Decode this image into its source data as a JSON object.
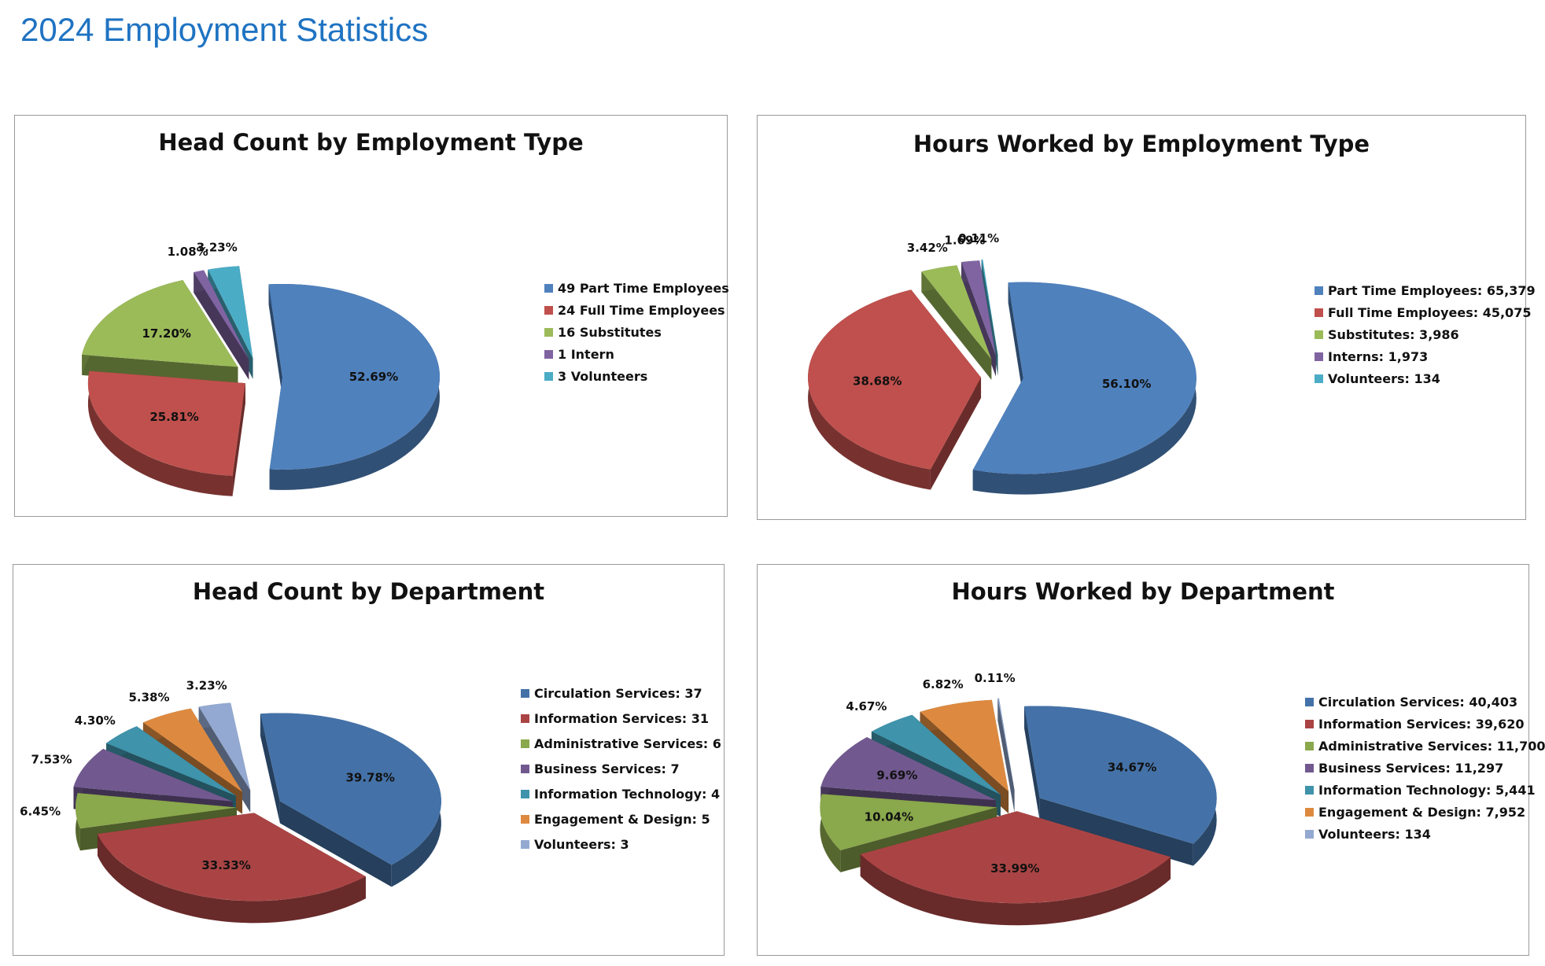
{
  "page": {
    "title": "2024 Employment Statistics"
  },
  "chart_data": [
    {
      "type": "pie",
      "title": "Head Count by Employment Type",
      "categories": [
        "49 Part Time Employees",
        "24 Full Time Employees",
        "16 Substitutes",
        "1 Intern",
        "3 Volunteers"
      ],
      "values": [
        49,
        24,
        16,
        1,
        3
      ],
      "data_labels": [
        "52.69%",
        "25.81%",
        "17.20%",
        "1.08%",
        "3.23%"
      ],
      "colors": [
        "#4f81bd",
        "#c0504d",
        "#9bbb59",
        "#8064a2",
        "#4bacc6"
      ],
      "exploded": true,
      "three_d": true,
      "legend": "right"
    },
    {
      "type": "pie",
      "title": "Hours Worked by Employment Type",
      "categories": [
        "Part Time Employees: 65,379",
        "Full Time Employees: 45,075",
        "Substitutes: 3,986",
        "Interns: 1,973",
        "Volunteers: 134"
      ],
      "values": [
        65379,
        45075,
        3986,
        1973,
        134
      ],
      "data_labels": [
        "56.10%",
        "38.68%",
        "3.42%",
        "1.69%",
        "0.11%"
      ],
      "colors": [
        "#4f81bd",
        "#c0504d",
        "#9bbb59",
        "#8064a2",
        "#4bacc6"
      ],
      "exploded": true,
      "three_d": true,
      "legend": "right"
    },
    {
      "type": "pie",
      "title": "Head Count by Department",
      "categories": [
        "Circulation Services: 37",
        "Information Services: 31",
        "Administrative Services: 6",
        "Business Services: 7",
        "Information Technology: 4",
        "Engagement & Design: 5",
        "Volunteers: 3"
      ],
      "values": [
        37,
        31,
        6,
        7,
        4,
        5,
        3
      ],
      "data_labels": [
        "39.78%",
        "33.33%",
        "6.45%",
        "7.53%",
        "4.30%",
        "5.38%",
        "3.23%"
      ],
      "colors": [
        "#4472a8",
        "#aa4444",
        "#8aa84c",
        "#71598f",
        "#3f93ab",
        "#dd8a40",
        "#93a9d1"
      ],
      "exploded": true,
      "three_d": true,
      "legend": "right"
    },
    {
      "type": "pie",
      "title": "Hours Worked by Department",
      "categories": [
        "Circulation Services: 40,403",
        "Information Services: 39,620",
        "Administrative Services: 11,700",
        "Business Services: 11,297",
        "Information Technology: 5,441",
        "Engagement & Design: 7,952",
        "Volunteers: 134"
      ],
      "values": [
        40403,
        39620,
        11700,
        11297,
        5441,
        7952,
        134
      ],
      "data_labels": [
        "34.67%",
        "33.99%",
        "10.04%",
        "9.69%",
        "4.67%",
        "6.82%",
        "0.11%"
      ],
      "colors": [
        "#4472a8",
        "#aa4444",
        "#8aa84c",
        "#71598f",
        "#3f93ab",
        "#dd8a40",
        "#93a9d1"
      ],
      "exploded": true,
      "three_d": true,
      "legend": "right"
    }
  ]
}
